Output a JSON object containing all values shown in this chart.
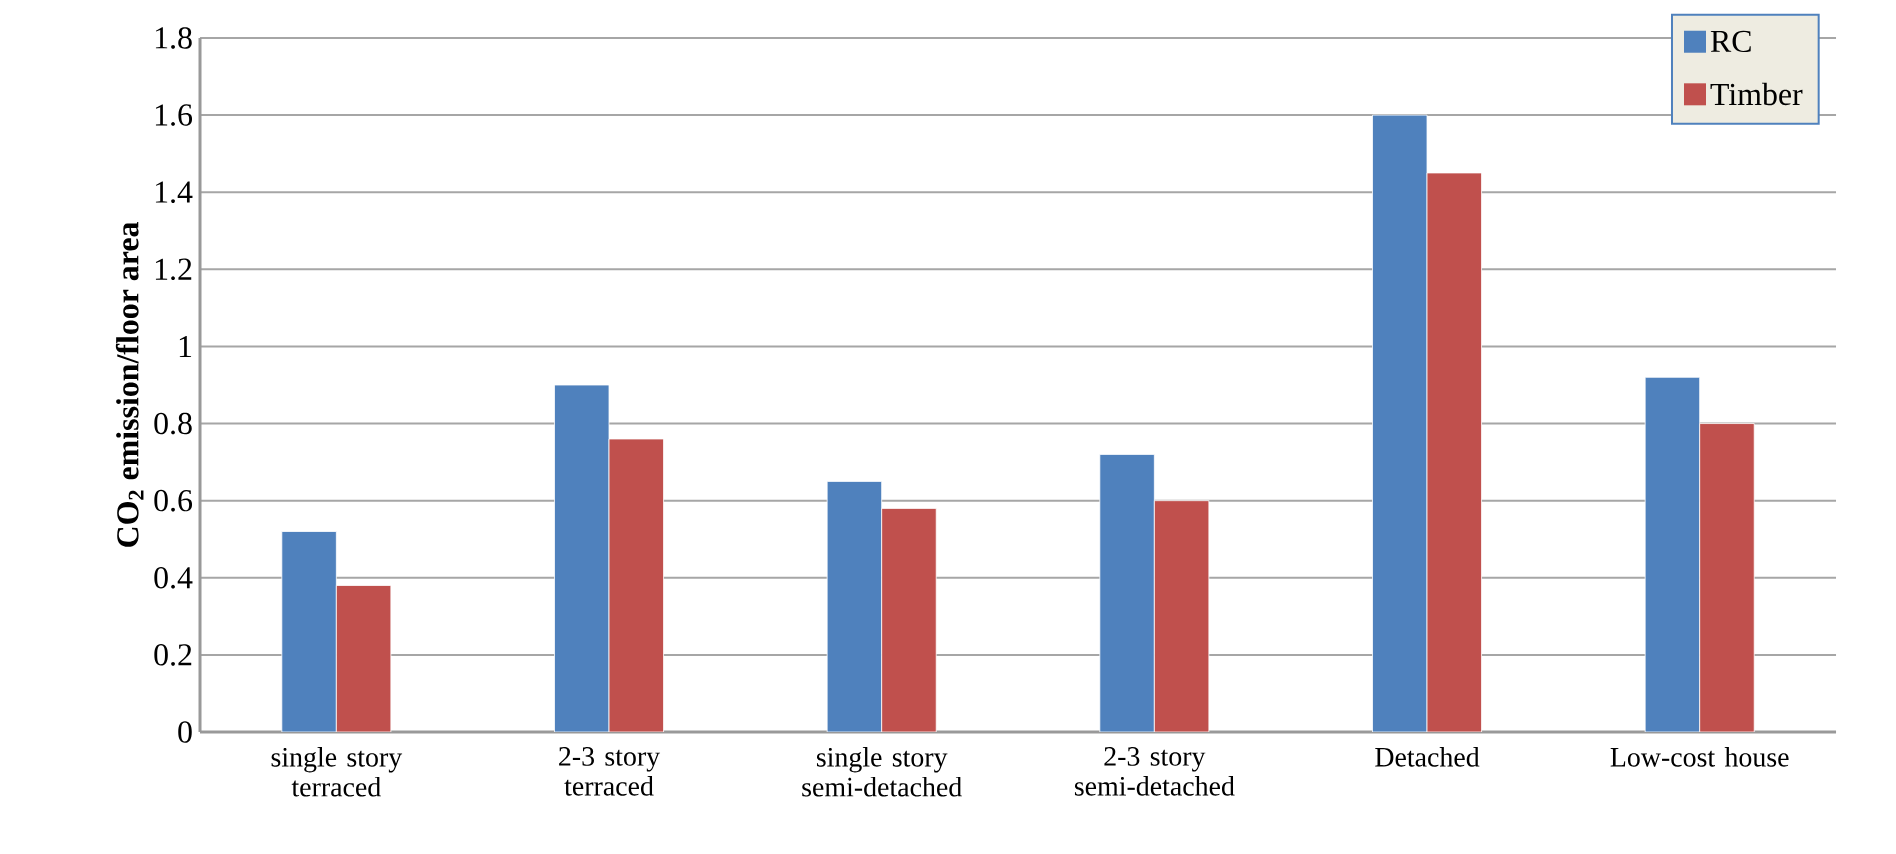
{
  "chart_data": {
    "type": "bar",
    "ylabel": "CO$_{2}$ emission/floor area",
    "categories": [
      "single story terraced",
      "2-3 story terraced",
      "single story semi-detached",
      "2-3 story semi-detached",
      "Detached",
      "Low-cost house"
    ],
    "series": [
      {
        "name": "RC",
        "color": "#4f81bd",
        "values": [
          0.52,
          0.9,
          0.65,
          0.72,
          1.6,
          0.92
        ]
      },
      {
        "name": "Timber",
        "color": "#c0504d",
        "values": [
          0.38,
          0.76,
          0.58,
          0.6,
          1.45,
          0.8
        ]
      }
    ],
    "ylim": [
      0,
      1.8
    ],
    "yticks": [
      0,
      0.2,
      0.4,
      0.6,
      0.8,
      1,
      1.2,
      1.4,
      1.6,
      1.8
    ],
    "grid": "y",
    "legend": "top right"
  }
}
